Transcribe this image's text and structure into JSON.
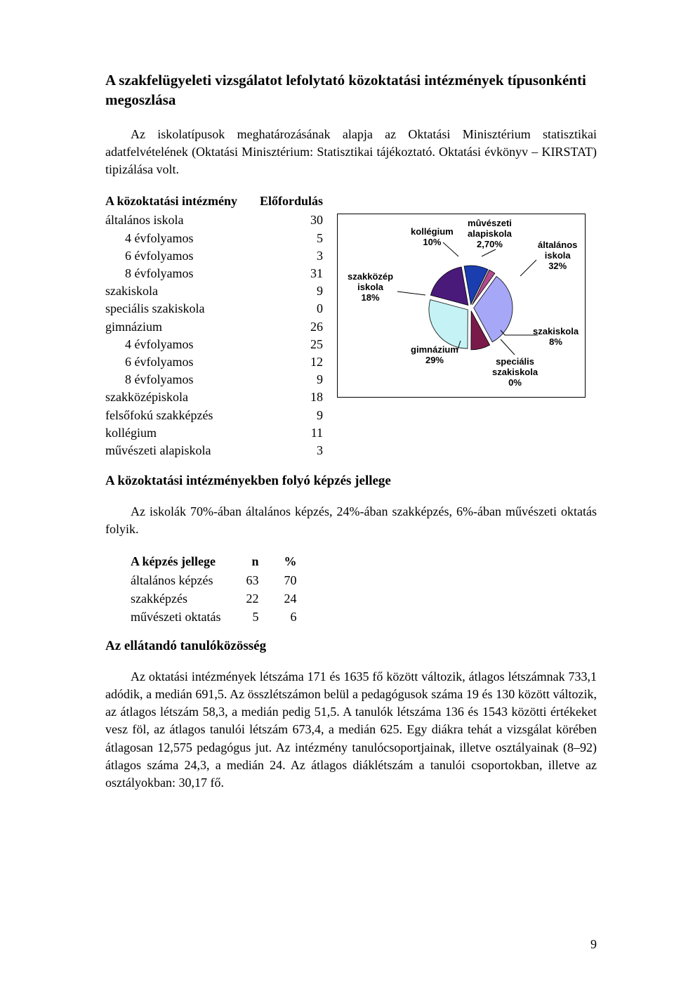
{
  "heading1": "A szakfelügyeleti vizsgálatot lefolytató közoktatási intézmények típusonkénti megoszlása",
  "para1": "Az iskolatípusok meghatározásának alapja az Oktatási Minisztérium statisztikai adatfelvételének (Oktatási Minisztérium: Statisztikai tájékoztató. Oktatási évkönyv – KIRSTAT) tipizálása volt.",
  "table1": {
    "col1_header": "A közoktatási intézmény",
    "col2_header": "Előfordulás",
    "rows": [
      {
        "l": "általános iskola",
        "v": "30",
        "indent": false
      },
      {
        "l": "4 évfolyamos",
        "v": "5",
        "indent": true
      },
      {
        "l": "6 évfolyamos",
        "v": "3",
        "indent": true
      },
      {
        "l": "8 évfolyamos",
        "v": "31",
        "indent": true
      },
      {
        "l": "szakiskola",
        "v": "9",
        "indent": false
      },
      {
        "l": "speciális szakiskola",
        "v": "0",
        "indent": false
      },
      {
        "l": "gimnázium",
        "v": "26",
        "indent": false
      },
      {
        "l": "4 évfolyamos",
        "v": "25",
        "indent": true
      },
      {
        "l": "6 évfolyamos",
        "v": "12",
        "indent": true
      },
      {
        "l": "8 évfolyamos",
        "v": "9",
        "indent": true
      },
      {
        "l": "szakközépiskola",
        "v": "18",
        "indent": false
      },
      {
        "l": "felsőfokú szakképzés",
        "v": "9",
        "indent": false
      },
      {
        "l": "kollégium",
        "v": "11",
        "indent": false
      },
      {
        "l": "művészeti alapiskola",
        "v": "3",
        "indent": false
      }
    ]
  },
  "pie_chart": {
    "type": "pie",
    "background_color": "#ffffff",
    "border_color": "#000000",
    "font_family": "Arial",
    "label_fontsize": 13,
    "label_fontweight": "bold",
    "outline_color": "#000000",
    "exploded": true,
    "slices": [
      {
        "label_lines": [
          "kollégium",
          "10%"
        ],
        "value": 10,
        "color": "#1a3db0"
      },
      {
        "label_lines": [
          "mûvészeti",
          "alapiskola",
          "2,70%"
        ],
        "value": 2.7,
        "color": "#b34a8c"
      },
      {
        "label_lines": [
          "általános",
          "iskola",
          "32%"
        ],
        "value": 32,
        "color": "#a7a7f8"
      },
      {
        "label_lines": [
          "szakiskola",
          "8%"
        ],
        "value": 8,
        "color": "#7a1a4a"
      },
      {
        "label_lines": [
          "speciális",
          "szakiskola",
          "0%"
        ],
        "value": 0,
        "color": "#9a8a5a"
      },
      {
        "label_lines": [
          "gimnázium",
          "29%"
        ],
        "value": 29,
        "color": "#c5f2f5"
      },
      {
        "label_lines": [
          "szakközép",
          "iskola",
          "18%"
        ],
        "value": 18,
        "color": "#4a1a7a"
      }
    ]
  },
  "heading2": "A közoktatási intézményekben folyó képzés jellege",
  "para2": "Az iskolák 70%-ában általános képzés, 24%-ában szakképzés, 6%-ában művészeti oktatás folyik.",
  "table2": {
    "col1_header": "A képzés jellege",
    "col2_header": "n",
    "col3_header": "%",
    "rows": [
      {
        "l": "általános képzés",
        "n": "63",
        "p": "70"
      },
      {
        "l": "szakképzés",
        "n": "22",
        "p": "24"
      },
      {
        "l": "művészeti oktatás",
        "n": "5",
        "p": "6"
      }
    ]
  },
  "heading3": "Az ellátandó tanulóközösség",
  "para3": "Az oktatási intézmények létszáma 171 és 1635 fő között változik, átlagos létszámnak 733,1 adódik, a medián 691,5. Az összlétszámon belül a pedagógusok száma 19 és 130 között változik, az átlagos létszám 58,3, a medián pedig 51,5. A tanulók létszáma 136 és 1543 közötti értékeket vesz föl, az átlagos tanulói létszám 673,4, a medián 625. Egy diákra tehát a vizsgálat körében átlagosan 12,575 pedagógus jut. Az intézmény tanulócsoportjainak, illetve osztályainak (8–92) átlagos száma 24,3, a medián 24. Az átlagos diáklétszám a tanulói csoportokban, illetve az osztályokban: 30,17 fő.",
  "page_number": "9"
}
